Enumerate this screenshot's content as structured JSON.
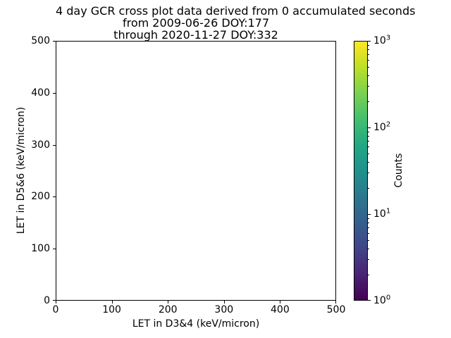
{
  "title": {
    "line1": "4 day GCR cross plot data derived from 0 accumulated seconds",
    "line2": "from 2009-06-26 DOY:177",
    "line3": "through 2020-11-27 DOY:332"
  },
  "chart_data": {
    "type": "scatter",
    "title": "4 day GCR cross plot data derived from 0 accumulated seconds\nfrom 2009-06-26 DOY:177\nthrough 2020-11-27 DOY:332",
    "xlabel": "LET in D3&4 (keV/micron)",
    "ylabel": "LET in D5&6 (keV/micron)",
    "xlim": [
      0,
      500
    ],
    "ylim": [
      0,
      500
    ],
    "x_ticks": [
      "0",
      "100",
      "200",
      "300",
      "400",
      "500"
    ],
    "y_ticks": [
      "0",
      "100",
      "200",
      "300",
      "400",
      "500"
    ],
    "grid": false,
    "points": [],
    "colorbar": {
      "label": "Counts",
      "scale": "log",
      "range": [
        1,
        1000
      ],
      "colormap": "viridis",
      "colors": [
        "#440154",
        "#482475",
        "#414487",
        "#355f8d",
        "#2a788e",
        "#21918c",
        "#22a884",
        "#44bf70",
        "#7ad151",
        "#bddf26",
        "#fde725"
      ],
      "tick_labels": [
        {
          "base": "10",
          "exp": "3"
        },
        {
          "base": "10",
          "exp": "2"
        },
        {
          "base": "10",
          "exp": "1"
        },
        {
          "base": "10",
          "exp": "0"
        }
      ]
    }
  }
}
